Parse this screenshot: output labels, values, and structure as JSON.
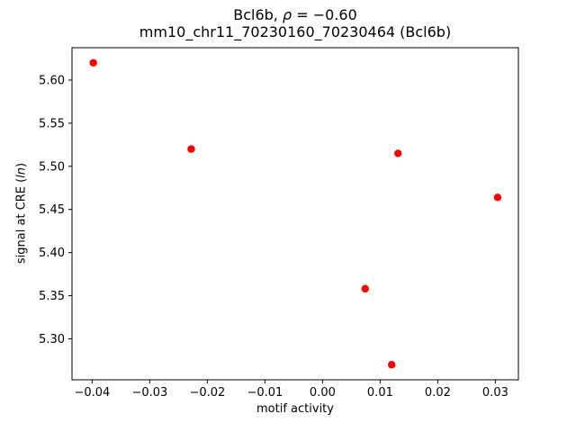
{
  "figure": {
    "background": "#ffffff",
    "axes_color": "#000000"
  },
  "chart_data": {
    "type": "scatter",
    "title_line1": "Bcl6b, ρ = −0.60",
    "title_line2": "mm10_chr11_70230160_70230464 (Bcl6b)",
    "title_parts": {
      "prefix": "Bcl6b, ",
      "rho": "ρ",
      "suffix": " = −0.60"
    },
    "xlabel": "motif activity",
    "ylabel": "signal at CRE (ln)",
    "ylabel_parts": {
      "prefix": "signal at CRE (",
      "italic": "ln",
      "suffix": ")"
    },
    "marker_color": "#ff0000",
    "marker_radius": 4.2,
    "grid": false,
    "legend": "none",
    "xlim": [
      -0.0435,
      0.034
    ],
    "ylim": [
      5.2525,
      5.6375
    ],
    "xticks": [
      -0.04,
      -0.03,
      -0.02,
      -0.01,
      0.0,
      0.01,
      0.02,
      0.03
    ],
    "yticks": [
      5.3,
      5.35,
      5.4,
      5.45,
      5.5,
      5.55,
      5.6
    ],
    "points": [
      {
        "x": -0.0398,
        "y": 5.62
      },
      {
        "x": -0.0228,
        "y": 5.52
      },
      {
        "x": 0.0074,
        "y": 5.358
      },
      {
        "x": 0.012,
        "y": 5.27
      },
      {
        "x": 0.0131,
        "y": 5.515
      },
      {
        "x": 0.0304,
        "y": 5.464
      }
    ]
  }
}
